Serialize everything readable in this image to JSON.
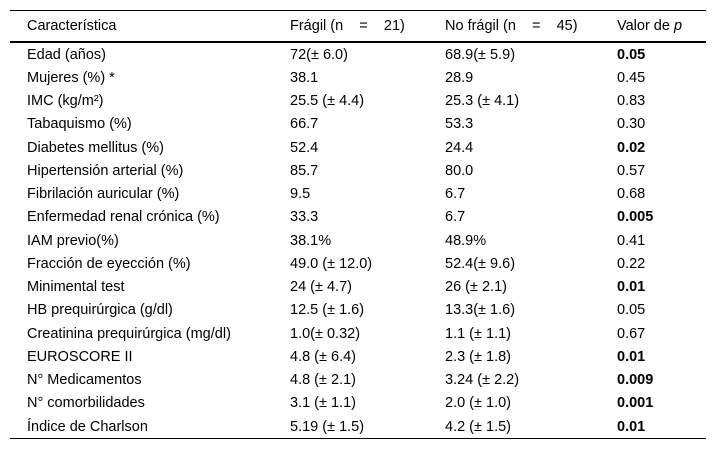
{
  "page": {
    "background_color": "#ffffff",
    "text_color": "#000000",
    "border_color": "#000000"
  },
  "table": {
    "columns": [
      {
        "label": "Característica"
      },
      {
        "label": "Frágil (n    =    21)"
      },
      {
        "label": "No frágil (n    =    45)"
      },
      {
        "label_prefix": "Valor de ",
        "label_italic": "p"
      }
    ],
    "rows": [
      {
        "caracteristica": "Edad (años)",
        "fragil": "72(± 6.0)",
        "no_fragil": "68.9(± 5.9)",
        "p": "0.05",
        "p_bold": true
      },
      {
        "caracteristica": "Mujeres (%) *",
        "fragil": "38.1",
        "no_fragil": "28.9",
        "p": "0.45",
        "p_bold": false
      },
      {
        "caracteristica": "IMC (kg/m²)",
        "fragil": "25.5 (± 4.4)",
        "no_fragil": "25.3 (± 4.1)",
        "p": "0.83",
        "p_bold": false
      },
      {
        "caracteristica": "Tabaquismo (%)",
        "fragil": "66.7",
        "no_fragil": "53.3",
        "p": "0.30",
        "p_bold": false
      },
      {
        "caracteristica": "Diabetes mellitus (%)",
        "fragil": "52.4",
        "no_fragil": "24.4",
        "p": "0.02",
        "p_bold": true
      },
      {
        "caracteristica": "Hipertensión arterial (%)",
        "fragil": "85.7",
        "no_fragil": "80.0",
        "p": "0.57",
        "p_bold": false
      },
      {
        "caracteristica": "Fibrilación auricular (%)",
        "fragil": "9.5",
        "no_fragil": "6.7",
        "p": "0.68",
        "p_bold": false
      },
      {
        "caracteristica": "Enfermedad renal crónica (%)",
        "fragil": "33.3",
        "no_fragil": "6.7",
        "p": "0.005",
        "p_bold": true
      },
      {
        "caracteristica": "IAM previo(%)",
        "fragil": "38.1%",
        "no_fragil": "48.9%",
        "p": "0.41",
        "p_bold": false
      },
      {
        "caracteristica": "Fracción de eyección (%)",
        "fragil": "49.0 (± 12.0)",
        "no_fragil": "52.4(± 9.6)",
        "p": "0.22",
        "p_bold": false
      },
      {
        "caracteristica": "Minimental test",
        "fragil": "24 (± 4.7)",
        "no_fragil": "26 (± 2.1)",
        "p": "0.01",
        "p_bold": true
      },
      {
        "caracteristica": "HB prequirúrgica (g/dl)",
        "fragil": "12.5 (± 1.6)",
        "no_fragil": "13.3(± 1.6)",
        "p": "0.05",
        "p_bold": false
      },
      {
        "caracteristica": "Creatinina prequirúrgica (mg/dl)",
        "fragil": "1.0(± 0.32)",
        "no_fragil": "1.1 (± 1.1)",
        "p": "0.67",
        "p_bold": false
      },
      {
        "caracteristica": "EUROSCORE II",
        "fragil": "4.8 (± 6.4)",
        "no_fragil": "2.3 (± 1.8)",
        "p": "0.01",
        "p_bold": true
      },
      {
        "caracteristica": "N° Medicamentos",
        "fragil": "4.8 (± 2.1)",
        "no_fragil": "3.24 (± 2.2)",
        "p": "0.009",
        "p_bold": true
      },
      {
        "caracteristica": "N° comorbilidades",
        "fragil": "3.1 (± 1.1)",
        "no_fragil": "2.0 (± 1.0)",
        "p": "0.001",
        "p_bold": true
      },
      {
        "caracteristica": "Índice de Charlson",
        "fragil": "5.19 (± 1.5)",
        "no_fragil": "4.2 (± 1.5)",
        "p": "0.01",
        "p_bold": true
      }
    ]
  }
}
